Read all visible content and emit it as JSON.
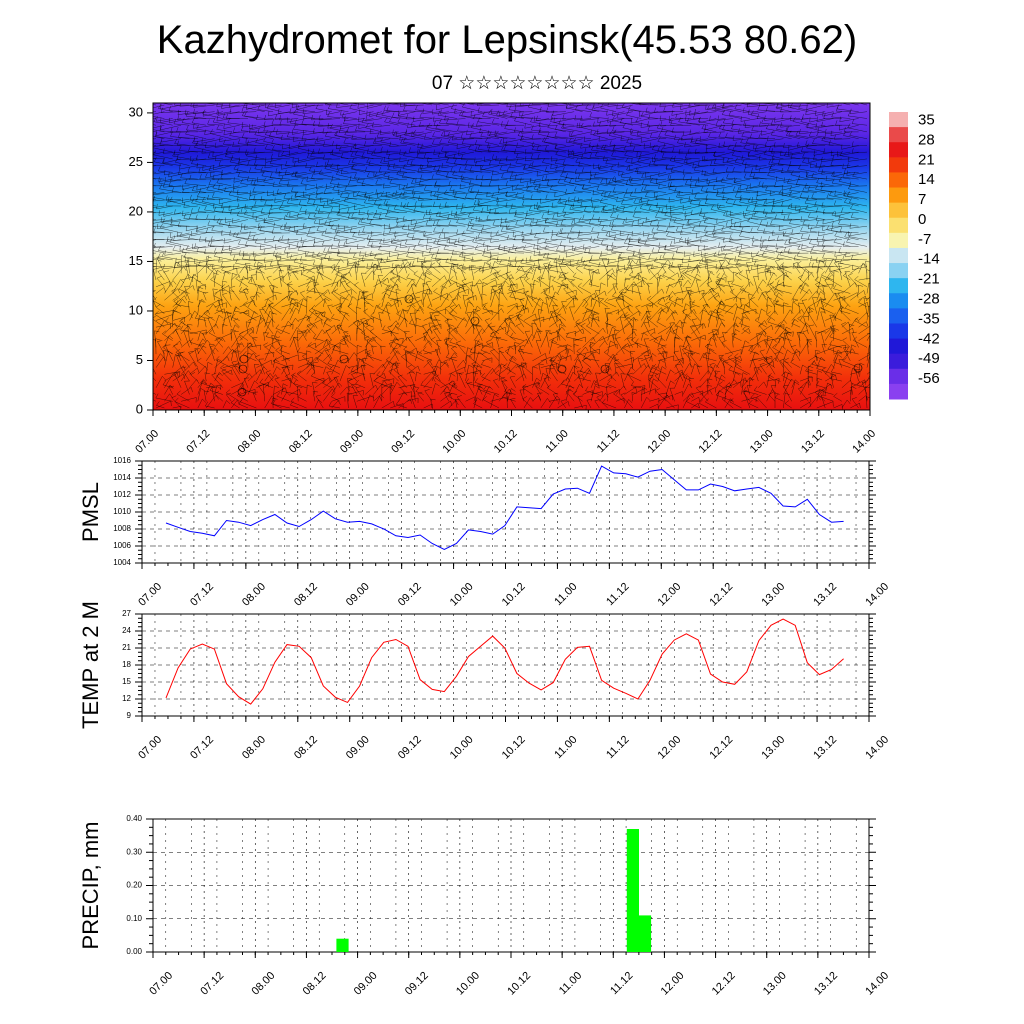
{
  "header": {
    "title": "Kazhydromet for Lepsinsk(45.53 80.62)",
    "date": "07 ☆☆☆☆☆☆☆☆ 2025"
  },
  "colors": {
    "pmsl_line": "#0000ff",
    "temp_line": "#ff0000",
    "precip_bar": "#00ff00",
    "grid": "#000000"
  },
  "chart_data": [
    {
      "id": "cross-section",
      "type": "heatmap",
      "title": "",
      "ylabel": "",
      "ylim": [
        0,
        31
      ],
      "yticks": [
        "0",
        "5",
        "10",
        "15",
        "20",
        "25",
        "30"
      ],
      "xticks": [
        "07.00",
        "07.12",
        "08.00",
        "08.12",
        "09.00",
        "09.12",
        "10.00",
        "10.12",
        "11.00",
        "11.12",
        "12.00",
        "12.12",
        "13.00",
        "13.12",
        "14.00"
      ],
      "overlay": "wind barbs",
      "colorbar": {
        "labels": [
          "35",
          "28",
          "21",
          "14",
          "7",
          "0",
          "-7",
          "-14",
          "-21",
          "-28",
          "-35",
          "-42",
          "-49",
          "-56"
        ],
        "range": [
          -63,
          38
        ]
      }
    },
    {
      "id": "pmsl",
      "type": "line",
      "ylabel": "PMSL",
      "ylim": [
        1004,
        1016
      ],
      "yticks": [
        "1004",
        "1006",
        "1008",
        "1010",
        "1012",
        "1014",
        "1016"
      ],
      "xticks": [
        "07.00",
        "07.12",
        "08.00",
        "08.12",
        "09.00",
        "09.12",
        "10.00",
        "10.12",
        "11.00",
        "11.12",
        "12.00",
        "12.12",
        "13.00",
        "13.12",
        "14.00"
      ],
      "series": [
        {
          "values": [
            1008.7,
            1008.2,
            1007.7,
            1007.5,
            1007.2,
            1009.0,
            1008.8,
            1008.4,
            1009.1,
            1009.7,
            1008.7,
            1008.3,
            1009.1,
            1010.1,
            1009.2,
            1008.8,
            1008.9,
            1008.6,
            1008.0,
            1007.2,
            1007.0,
            1007.3,
            1006.3,
            1005.6,
            1006.3,
            1007.9,
            1007.7,
            1007.4,
            1008.4,
            1010.6,
            1010.5,
            1010.4,
            1012.1,
            1012.7,
            1012.8,
            1012.2,
            1015.4,
            1014.6,
            1014.5,
            1014.1,
            1014.8,
            1015.0,
            1013.8,
            1012.6,
            1012.6,
            1013.3,
            1013.0,
            1012.5,
            1012.7,
            1012.9,
            1012.2,
            1010.7,
            1010.6,
            1011.5,
            1009.7,
            1008.8,
            1008.9
          ]
        }
      ]
    },
    {
      "id": "temp",
      "type": "line",
      "ylabel": "TEMP at 2 M",
      "ylim": [
        9,
        27
      ],
      "yticks": [
        "9",
        "12",
        "15",
        "18",
        "21",
        "24",
        "27"
      ],
      "xticks": [
        "07.00",
        "07.12",
        "08.00",
        "08.12",
        "09.00",
        "09.12",
        "10.00",
        "10.12",
        "11.00",
        "11.12",
        "12.00",
        "12.12",
        "13.00",
        "13.12",
        "14.00"
      ],
      "series": [
        {
          "values": [
            12.2,
            17.5,
            20.8,
            21.7,
            20.8,
            14.7,
            12.4,
            11.1,
            13.8,
            18.5,
            21.6,
            21.3,
            19.3,
            14.3,
            12.3,
            11.4,
            14.3,
            19.3,
            22.0,
            22.5,
            21.3,
            15.4,
            13.7,
            13.3,
            16.0,
            19.5,
            21.3,
            23.1,
            21.0,
            16.5,
            14.8,
            13.6,
            14.9,
            19.0,
            21.1,
            21.3,
            15.3,
            13.9,
            13.0,
            12.0,
            15.3,
            19.9,
            22.4,
            23.5,
            22.4,
            16.4,
            15.0,
            14.6,
            16.8,
            22.3,
            25.0,
            26.1,
            25.0,
            18.4,
            16.3,
            17.2,
            19.1
          ]
        }
      ]
    },
    {
      "id": "precip",
      "type": "bar",
      "ylabel": "PRECIP, mm",
      "ylim": [
        0,
        0.4
      ],
      "yticks": [
        "0.00",
        "0.10",
        "0.20",
        "0.30",
        "0.40"
      ],
      "xticks": [
        "07.00",
        "07.12",
        "08.00",
        "08.12",
        "09.00",
        "09.12",
        "10.00",
        "10.12",
        "11.00",
        "11.12",
        "12.00",
        "12.12",
        "13.00",
        "13.12",
        "14.00"
      ],
      "bars": [
        {
          "x": 14,
          "value": 0.04
        },
        {
          "x": 38,
          "value": 0.37
        },
        {
          "x": 39,
          "value": 0.11
        }
      ]
    }
  ]
}
